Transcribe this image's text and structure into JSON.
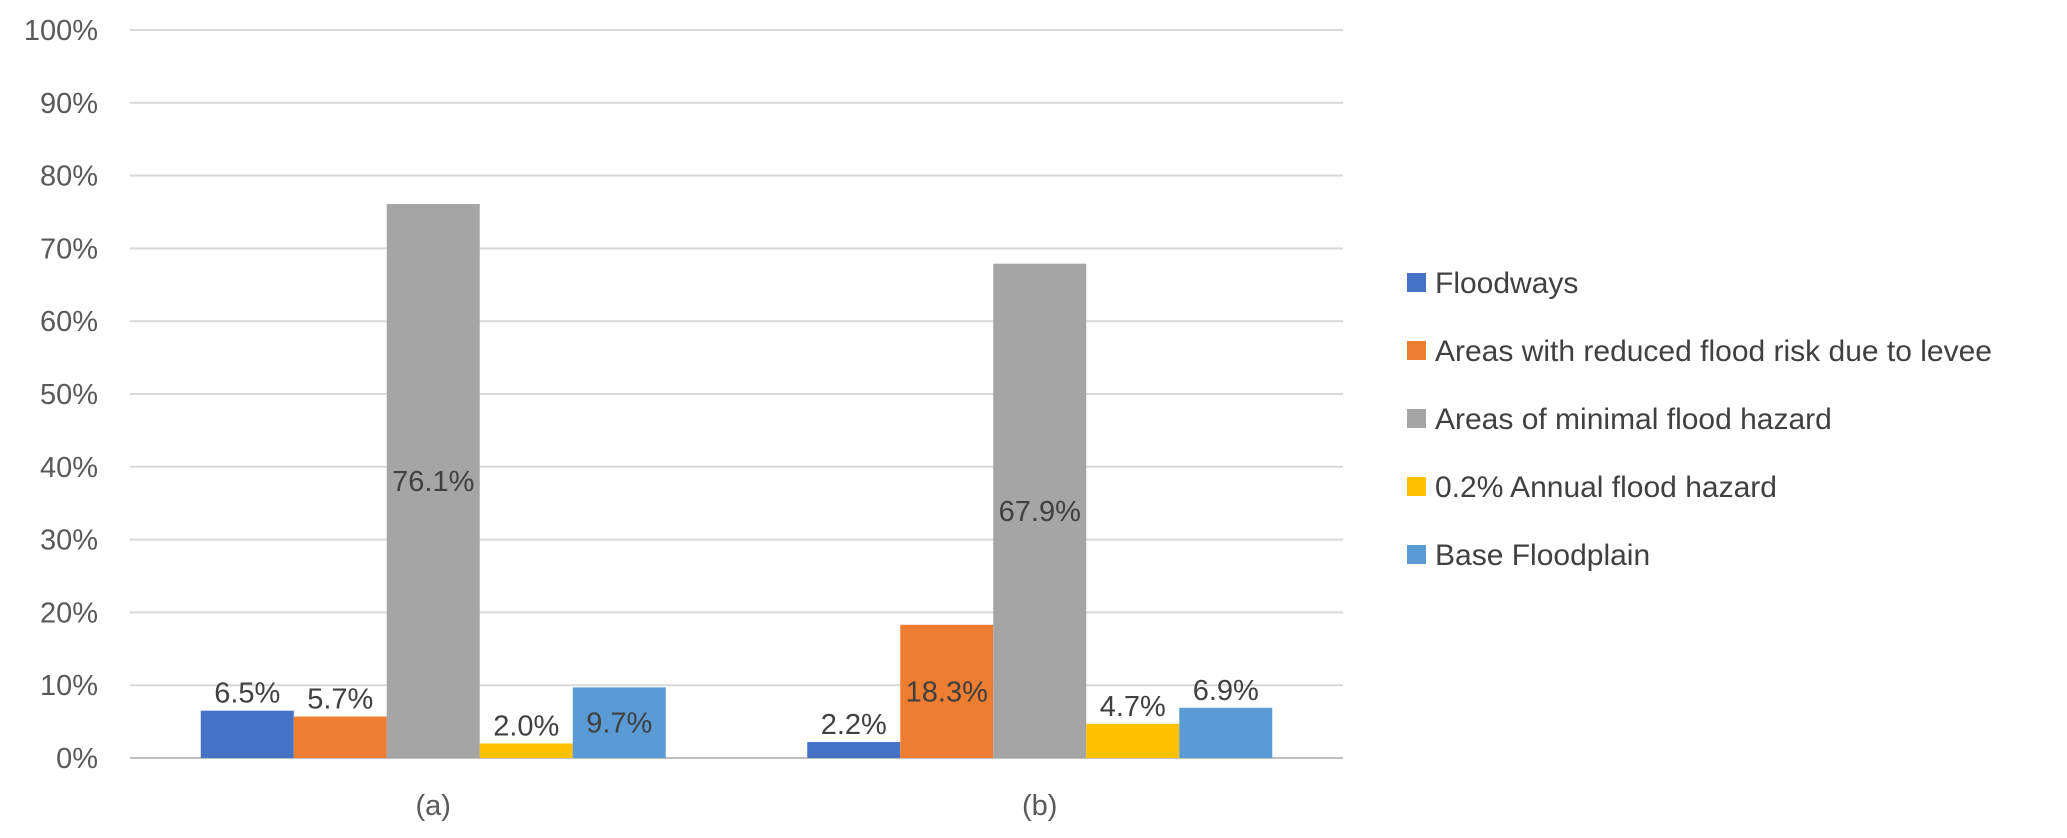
{
  "chart_data": {
    "type": "bar",
    "categories": [
      "(a)",
      "(b)"
    ],
    "series": [
      {
        "name": "Floodways",
        "color": "#4472C4",
        "values": [
          6.5,
          2.2
        ],
        "labels": [
          "6.5%",
          "2.2%"
        ]
      },
      {
        "name": "Areas with reduced flood risk due to levee",
        "color": "#ED7D31",
        "values": [
          5.7,
          18.3
        ],
        "labels": [
          "5.7%",
          "18.3%"
        ]
      },
      {
        "name": "Areas of minimal flood hazard",
        "color": "#A5A5A5",
        "values": [
          76.1,
          67.9
        ],
        "labels": [
          "76.1%",
          "67.9%"
        ]
      },
      {
        "name": "0.2% Annual flood hazard",
        "color": "#FFC000",
        "values": [
          2.0,
          4.7
        ],
        "labels": [
          "2.0%",
          "4.7%"
        ]
      },
      {
        "name": "Base Floodplain",
        "color": "#5B9BD5",
        "values": [
          9.7,
          6.9
        ],
        "labels": [
          "9.7%",
          "6.9%"
        ]
      }
    ],
    "ylim": [
      0,
      100
    ],
    "yticks": [
      "0%",
      "10%",
      "20%",
      "30%",
      "40%",
      "50%",
      "60%",
      "70%",
      "80%",
      "90%",
      "100%"
    ],
    "grid": true,
    "legend_position": "right",
    "title": "",
    "xlabel": "",
    "ylabel": ""
  }
}
